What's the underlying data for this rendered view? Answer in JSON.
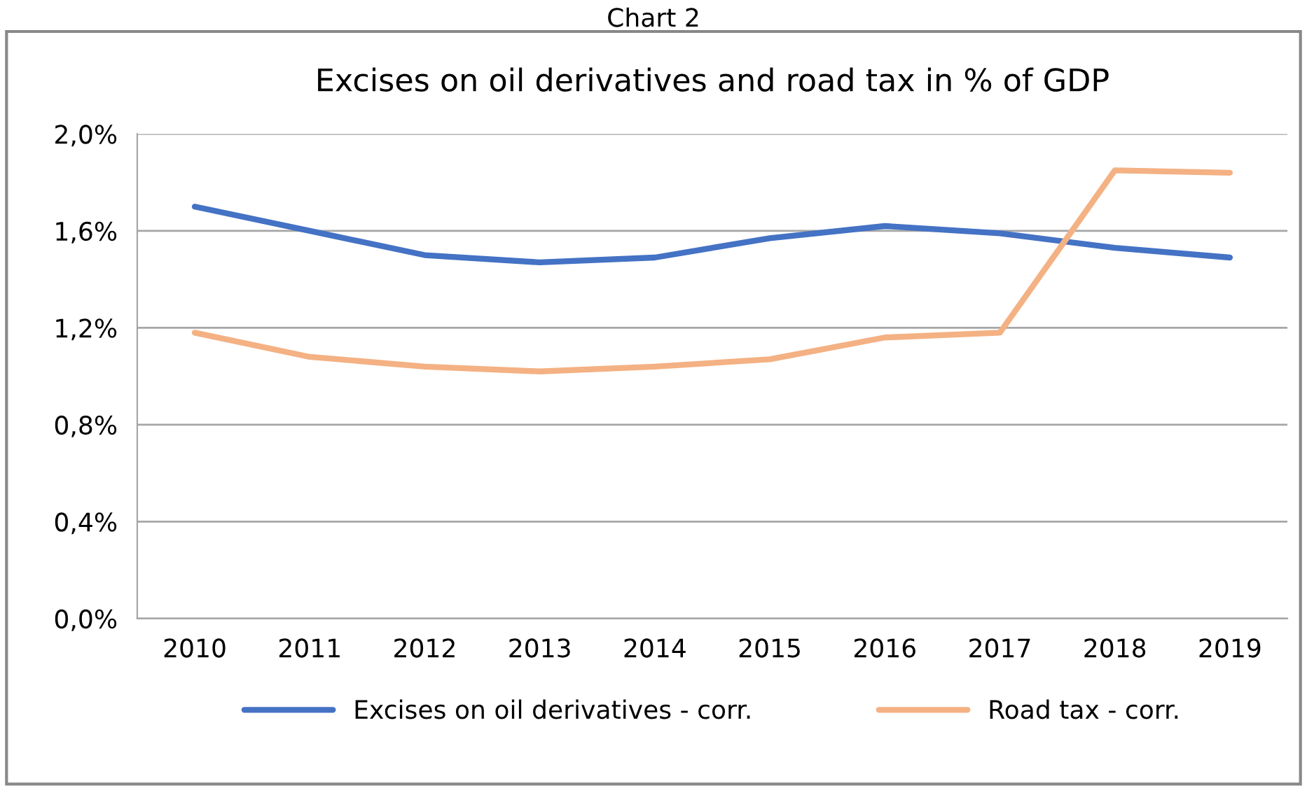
{
  "chart_data": {
    "type": "line",
    "title": "Excises on oil derivatives and road tax in % of GDP",
    "annotations": [
      "Chart 2"
    ],
    "categories": [
      "2010",
      "2011",
      "2012",
      "2013",
      "2014",
      "2015",
      "2016",
      "2017",
      "2018",
      "2019"
    ],
    "series": [
      {
        "name": "Excises on oil derivatives - corr.",
        "color": "#4472c4",
        "values": [
          1.7,
          1.6,
          1.5,
          1.47,
          1.49,
          1.57,
          1.62,
          1.59,
          1.53,
          1.49
        ]
      },
      {
        "name": "Road tax - corr.",
        "color": "#f4b183",
        "values": [
          1.18,
          1.08,
          1.04,
          1.02,
          1.04,
          1.07,
          1.16,
          1.18,
          1.85,
          1.84
        ]
      }
    ],
    "ylim": [
      0,
      2.0
    ],
    "yticks": [
      {
        "value": 0,
        "label": "0,0%"
      },
      {
        "value": 0.4,
        "label": "0,4%"
      },
      {
        "value": 0.8,
        "label": "0,8%"
      },
      {
        "value": 1.2,
        "label": "1,2%"
      },
      {
        "value": 1.6,
        "label": "1,6%"
      },
      {
        "value": 2.0,
        "label": "2,0%"
      }
    ],
    "grid": "y",
    "legend": "bottom",
    "marker": "none",
    "line_style": "solid"
  }
}
